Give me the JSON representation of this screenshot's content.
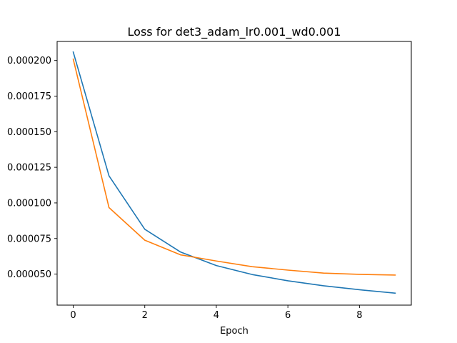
{
  "chart_data": {
    "type": "line",
    "title": "Loss for det3_adam_lr0.001_wd0.001",
    "xlabel": "Epoch",
    "ylabel": "",
    "x": [
      0,
      1,
      2,
      3,
      4,
      5,
      6,
      7,
      8,
      9
    ],
    "xlim": [
      -0.45,
      9.45
    ],
    "ylim": [
      2.82e-05,
      0.0002134
    ],
    "xticks": [
      0,
      2,
      4,
      6,
      8
    ],
    "xtick_labels": [
      "0",
      "2",
      "4",
      "6",
      "8"
    ],
    "yticks": [
      5e-05,
      7.5e-05,
      0.0001,
      0.000125,
      0.00015,
      0.000175,
      0.0002
    ],
    "ytick_labels": [
      "0.000050",
      "0.000075",
      "0.000100",
      "0.000125",
      "0.000150",
      "0.000175",
      "0.000200"
    ],
    "grid": false,
    "series": [
      {
        "color": "#1f77b4",
        "values": [
          0.000206,
          0.000119,
          8.15e-05,
          6.55e-05,
          5.6e-05,
          4.97e-05,
          4.53e-05,
          4.18e-05,
          3.9e-05,
          3.66e-05
        ]
      },
      {
        "color": "#ff7f0e",
        "values": [
          0.000201,
          9.67e-05,
          7.38e-05,
          6.35e-05,
          5.92e-05,
          5.52e-05,
          5.28e-05,
          5.07e-05,
          4.98e-05,
          4.93e-05
        ]
      }
    ]
  }
}
